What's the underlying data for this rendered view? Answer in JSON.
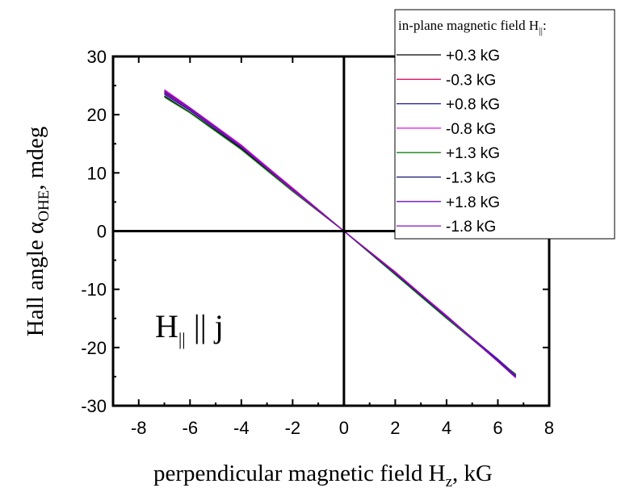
{
  "chart_data": {
    "type": "line",
    "title": "",
    "xlabel": {
      "main": "perpendicular magnetic field H",
      "sub": "z",
      "tail": ", kG"
    },
    "ylabel": {
      "main": "Hall angle α",
      "sub": "OHE",
      "tail": ", mdeg"
    },
    "xlim": [
      -9,
      8
    ],
    "ylim": [
      -30,
      30
    ],
    "xticks": [
      -8,
      -6,
      -4,
      -2,
      0,
      2,
      4,
      6,
      8
    ],
    "yticks": [
      -30,
      -20,
      -10,
      0,
      10,
      20,
      30
    ],
    "xtick_labels": [
      "-8",
      "-6",
      "-4",
      "-2",
      "0",
      "2",
      "4",
      "6",
      "8"
    ],
    "ytick_labels": [
      "-30",
      "-20",
      "-10",
      "0",
      "10",
      "20",
      "30"
    ],
    "grid": false,
    "zero_lines": true,
    "legend": {
      "placement": "top-right",
      "title": {
        "main": "in-plane magnetic field H",
        "sub": "||",
        "tail": ":"
      }
    },
    "annotation": {
      "main": "H",
      "sub": "||",
      "tail": " || j"
    },
    "series": [
      {
        "name": "+0.3 kG",
        "color": "#000000",
        "x": [
          -7.0,
          -6.0,
          -4.0,
          -2.0,
          0.0,
          2.0,
          4.0,
          6.0,
          6.7
        ],
        "y": [
          23.2,
          20.4,
          14.2,
          6.9,
          0.0,
          -7.4,
          -14.9,
          -22.2,
          -24.6
        ]
      },
      {
        "name": "-0.3 kG",
        "color": "#e0106a",
        "x": [
          -7.0,
          -6.0,
          -4.0,
          -2.0,
          0.0,
          2.0,
          4.0,
          6.0,
          6.7
        ],
        "y": [
          24.0,
          21.0,
          14.7,
          7.4,
          0.0,
          -7.0,
          -14.6,
          -22.1,
          -25.1
        ]
      },
      {
        "name": "+0.8 kG",
        "color": "#1a1aa0",
        "x": [
          -7.0,
          -6.0,
          -4.0,
          -2.0,
          0.0,
          2.0,
          4.0,
          6.0,
          6.7
        ],
        "y": [
          23.5,
          20.7,
          14.4,
          7.1,
          0.0,
          -7.2,
          -14.7,
          -22.0,
          -24.7
        ]
      },
      {
        "name": "-0.8 kG",
        "color": "#e010e0",
        "x": [
          -7.0,
          -6.0,
          -4.0,
          -2.0,
          0.0,
          2.0,
          4.0,
          6.0,
          6.7
        ],
        "y": [
          24.3,
          21.2,
          14.8,
          7.3,
          0.0,
          -7.1,
          -14.5,
          -22.3,
          -25.0
        ]
      },
      {
        "name": "+1.3 kG",
        "color": "#108010",
        "x": [
          -7.0,
          -6.0,
          -4.0,
          -2.0,
          0.0,
          2.0,
          4.0,
          6.0,
          6.7
        ],
        "y": [
          23.0,
          20.3,
          14.0,
          6.8,
          0.0,
          -7.5,
          -15.0,
          -22.3,
          -24.6
        ]
      },
      {
        "name": "-1.3 kG",
        "color": "#101070",
        "x": [
          -7.0,
          -6.0,
          -4.0,
          -2.0,
          0.0,
          2.0,
          4.0,
          6.0,
          6.7
        ],
        "y": [
          23.8,
          20.8,
          14.5,
          7.2,
          0.0,
          -7.3,
          -14.8,
          -22.2,
          -24.9
        ]
      },
      {
        "name": "+1.8 kG",
        "color": "#6a10c0",
        "x": [
          -7.0,
          -6.0,
          -4.0,
          -2.0,
          0.0,
          2.0,
          4.0,
          6.0,
          6.7
        ],
        "y": [
          24.1,
          21.1,
          14.6,
          7.2,
          0.0,
          -7.2,
          -14.6,
          -22.1,
          -24.8
        ]
      },
      {
        "name": "-1.8 kG",
        "color": "#8a10b0",
        "x": [
          -7.0,
          -6.0,
          -4.0,
          -2.0,
          0.0,
          2.0,
          4.0,
          6.0,
          6.7
        ],
        "y": [
          23.7,
          20.9,
          14.5,
          7.0,
          0.0,
          -7.1,
          -14.7,
          -22.4,
          -25.2
        ]
      }
    ]
  }
}
